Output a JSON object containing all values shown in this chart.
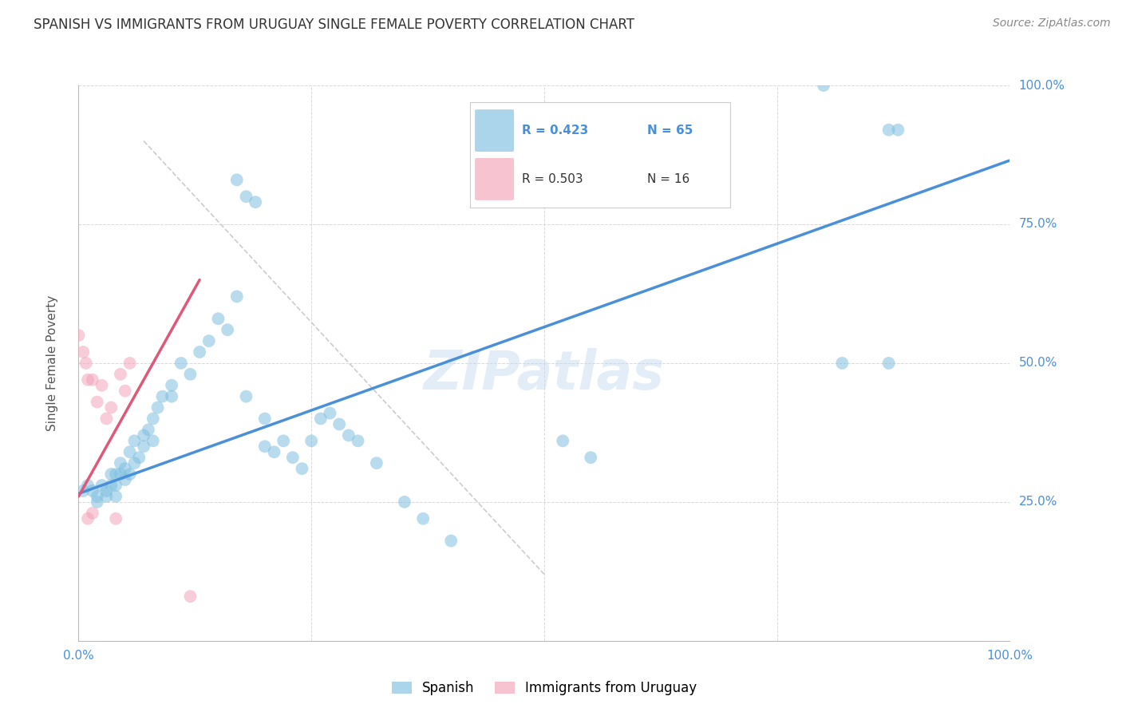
{
  "title": "SPANISH VS IMMIGRANTS FROM URUGUAY SINGLE FEMALE POVERTY CORRELATION CHART",
  "source": "Source: ZipAtlas.com",
  "ylabel": "Single Female Poverty",
  "xlim": [
    0.0,
    1.0
  ],
  "ylim": [
    0.0,
    1.0
  ],
  "xtick_positions": [
    0.0,
    0.25,
    0.5,
    0.75,
    1.0
  ],
  "ytick_positions": [
    0.0,
    0.25,
    0.5,
    0.75,
    1.0
  ],
  "xtick_labels": [
    "0.0%",
    "",
    "",
    "",
    "100.0%"
  ],
  "ytick_labels_right": [
    "",
    "25.0%",
    "50.0%",
    "75.0%",
    "100.0%"
  ],
  "blue_color": "#7fbfdf",
  "pink_color": "#f4a3b8",
  "blue_line_color": "#4a90d9",
  "pink_line_color": "#e05878",
  "legend_blue_r": "R = 0.423",
  "legend_blue_n": "N = 65",
  "legend_pink_r": "R = 0.503",
  "legend_pink_n": "N = 16",
  "legend_label_blue": "Spanish",
  "legend_label_pink": "Immigrants from Uruguay",
  "watermark": "ZIPatlas",
  "blue_scatter_x": [
    0.005,
    0.01,
    0.015,
    0.02,
    0.02,
    0.025,
    0.03,
    0.03,
    0.035,
    0.035,
    0.04,
    0.04,
    0.04,
    0.045,
    0.045,
    0.05,
    0.05,
    0.055,
    0.055,
    0.06,
    0.06,
    0.065,
    0.07,
    0.07,
    0.075,
    0.08,
    0.08,
    0.085,
    0.09,
    0.1,
    0.1,
    0.11,
    0.12,
    0.13,
    0.14,
    0.15,
    0.16,
    0.17,
    0.18,
    0.2,
    0.22,
    0.23,
    0.24,
    0.25,
    0.26,
    0.27,
    0.28,
    0.29,
    0.3,
    0.32,
    0.35,
    0.37,
    0.4,
    0.52,
    0.55,
    0.8,
    0.82,
    0.87,
    0.87,
    0.88,
    0.17,
    0.18,
    0.19,
    0.2,
    0.21
  ],
  "blue_scatter_y": [
    0.27,
    0.28,
    0.27,
    0.26,
    0.25,
    0.28,
    0.27,
    0.26,
    0.3,
    0.28,
    0.3,
    0.28,
    0.26,
    0.32,
    0.3,
    0.31,
    0.29,
    0.34,
    0.3,
    0.36,
    0.32,
    0.33,
    0.37,
    0.35,
    0.38,
    0.4,
    0.36,
    0.42,
    0.44,
    0.46,
    0.44,
    0.5,
    0.48,
    0.52,
    0.54,
    0.58,
    0.56,
    0.62,
    0.44,
    0.4,
    0.36,
    0.33,
    0.31,
    0.36,
    0.4,
    0.41,
    0.39,
    0.37,
    0.36,
    0.32,
    0.25,
    0.22,
    0.18,
    0.36,
    0.33,
    1.0,
    0.5,
    0.5,
    0.92,
    0.92,
    0.83,
    0.8,
    0.79,
    0.35,
    0.34
  ],
  "pink_scatter_x": [
    0.0,
    0.005,
    0.008,
    0.01,
    0.01,
    0.015,
    0.015,
    0.02,
    0.025,
    0.03,
    0.035,
    0.04,
    0.045,
    0.05,
    0.055,
    0.12
  ],
  "pink_scatter_y": [
    0.55,
    0.52,
    0.5,
    0.47,
    0.22,
    0.47,
    0.23,
    0.43,
    0.46,
    0.4,
    0.42,
    0.22,
    0.48,
    0.45,
    0.5,
    0.08
  ],
  "blue_line_x": [
    0.0,
    1.0
  ],
  "blue_line_y": [
    0.265,
    0.865
  ],
  "pink_line_x": [
    0.0,
    0.13
  ],
  "pink_line_y": [
    0.26,
    0.65
  ],
  "dashed_line_x": [
    0.07,
    0.5
  ],
  "dashed_line_y": [
    0.9,
    0.12
  ],
  "grid_color": "#d9d9d9",
  "background_color": "#ffffff",
  "title_fontsize": 12,
  "axis_label_fontsize": 11,
  "tick_fontsize": 11,
  "source_fontsize": 10
}
